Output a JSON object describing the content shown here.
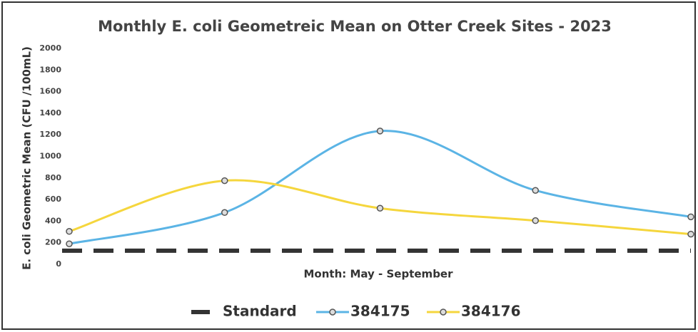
{
  "chart_data": {
    "type": "line",
    "title": "Monthly E. coli Geometreic Mean on Otter Creek Sites - 2023",
    "x_label": "Month:  May - September",
    "y_label": "E. coli Geometric Mean (CFU /100mL)",
    "categories": [
      null,
      null,
      null,
      null,
      null
    ],
    "ylim": [
      0,
      2000
    ],
    "yticks": [
      0,
      200,
      400,
      600,
      800,
      1000,
      1200,
      1400,
      1600,
      1800,
      2000
    ],
    "grid": false,
    "legend": "bottom",
    "series": [
      {
        "name": "Standard",
        "color": "#333333",
        "dashed": true,
        "values": [
          126,
          126,
          126,
          126,
          126
        ]
      },
      {
        "name": "384175",
        "color": "#5bb4e5",
        "values": [
          190,
          480,
          1235,
          685,
          440
        ]
      },
      {
        "name": "384176",
        "color": "#f5d63d",
        "values": [
          305,
          775,
          520,
          405,
          280
        ]
      }
    ]
  }
}
